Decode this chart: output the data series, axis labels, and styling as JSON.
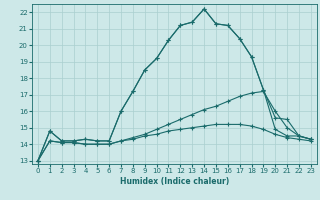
{
  "title": "",
  "xlabel": "Humidex (Indice chaleur)",
  "ylabel": "",
  "xlim": [
    -0.5,
    23.5
  ],
  "ylim": [
    12.8,
    22.5
  ],
  "yticks": [
    13,
    14,
    15,
    16,
    17,
    18,
    19,
    20,
    21,
    22
  ],
  "xticks": [
    0,
    1,
    2,
    3,
    4,
    5,
    6,
    7,
    8,
    9,
    10,
    11,
    12,
    13,
    14,
    15,
    16,
    17,
    18,
    19,
    20,
    21,
    22,
    23
  ],
  "bg_color": "#cde8e8",
  "grid_color": "#aacfcf",
  "line_color": "#1a6b6b",
  "hours": [
    0,
    1,
    2,
    3,
    4,
    5,
    6,
    7,
    8,
    9,
    10,
    11,
    12,
    13,
    14,
    15,
    16,
    17,
    18,
    19,
    20,
    21,
    22,
    23
  ],
  "line_main": [
    13.0,
    14.8,
    14.2,
    14.2,
    14.3,
    14.2,
    14.2,
    16.0,
    17.2,
    18.5,
    19.2,
    20.3,
    21.2,
    21.4,
    22.2,
    21.3,
    21.2,
    20.4,
    19.3,
    17.3,
    14.9,
    14.5,
    14.5,
    14.3
  ],
  "line_max": [
    13.0,
    14.8,
    14.2,
    14.2,
    14.3,
    14.2,
    14.2,
    16.0,
    17.2,
    18.5,
    19.2,
    20.3,
    21.2,
    21.4,
    22.2,
    21.3,
    21.2,
    20.4,
    19.3,
    17.3,
    15.6,
    15.5,
    14.5,
    14.3
  ],
  "line_avg": [
    13.0,
    14.2,
    14.1,
    14.1,
    14.0,
    14.0,
    14.0,
    14.2,
    14.4,
    14.6,
    14.9,
    15.2,
    15.5,
    15.8,
    16.1,
    16.3,
    16.6,
    16.9,
    17.1,
    17.2,
    16.0,
    15.0,
    14.5,
    14.3
  ],
  "line_min": [
    13.0,
    14.2,
    14.1,
    14.1,
    14.0,
    14.0,
    14.0,
    14.2,
    14.3,
    14.5,
    14.6,
    14.8,
    14.9,
    15.0,
    15.1,
    15.2,
    15.2,
    15.2,
    15.1,
    14.9,
    14.6,
    14.4,
    14.3,
    14.2
  ]
}
